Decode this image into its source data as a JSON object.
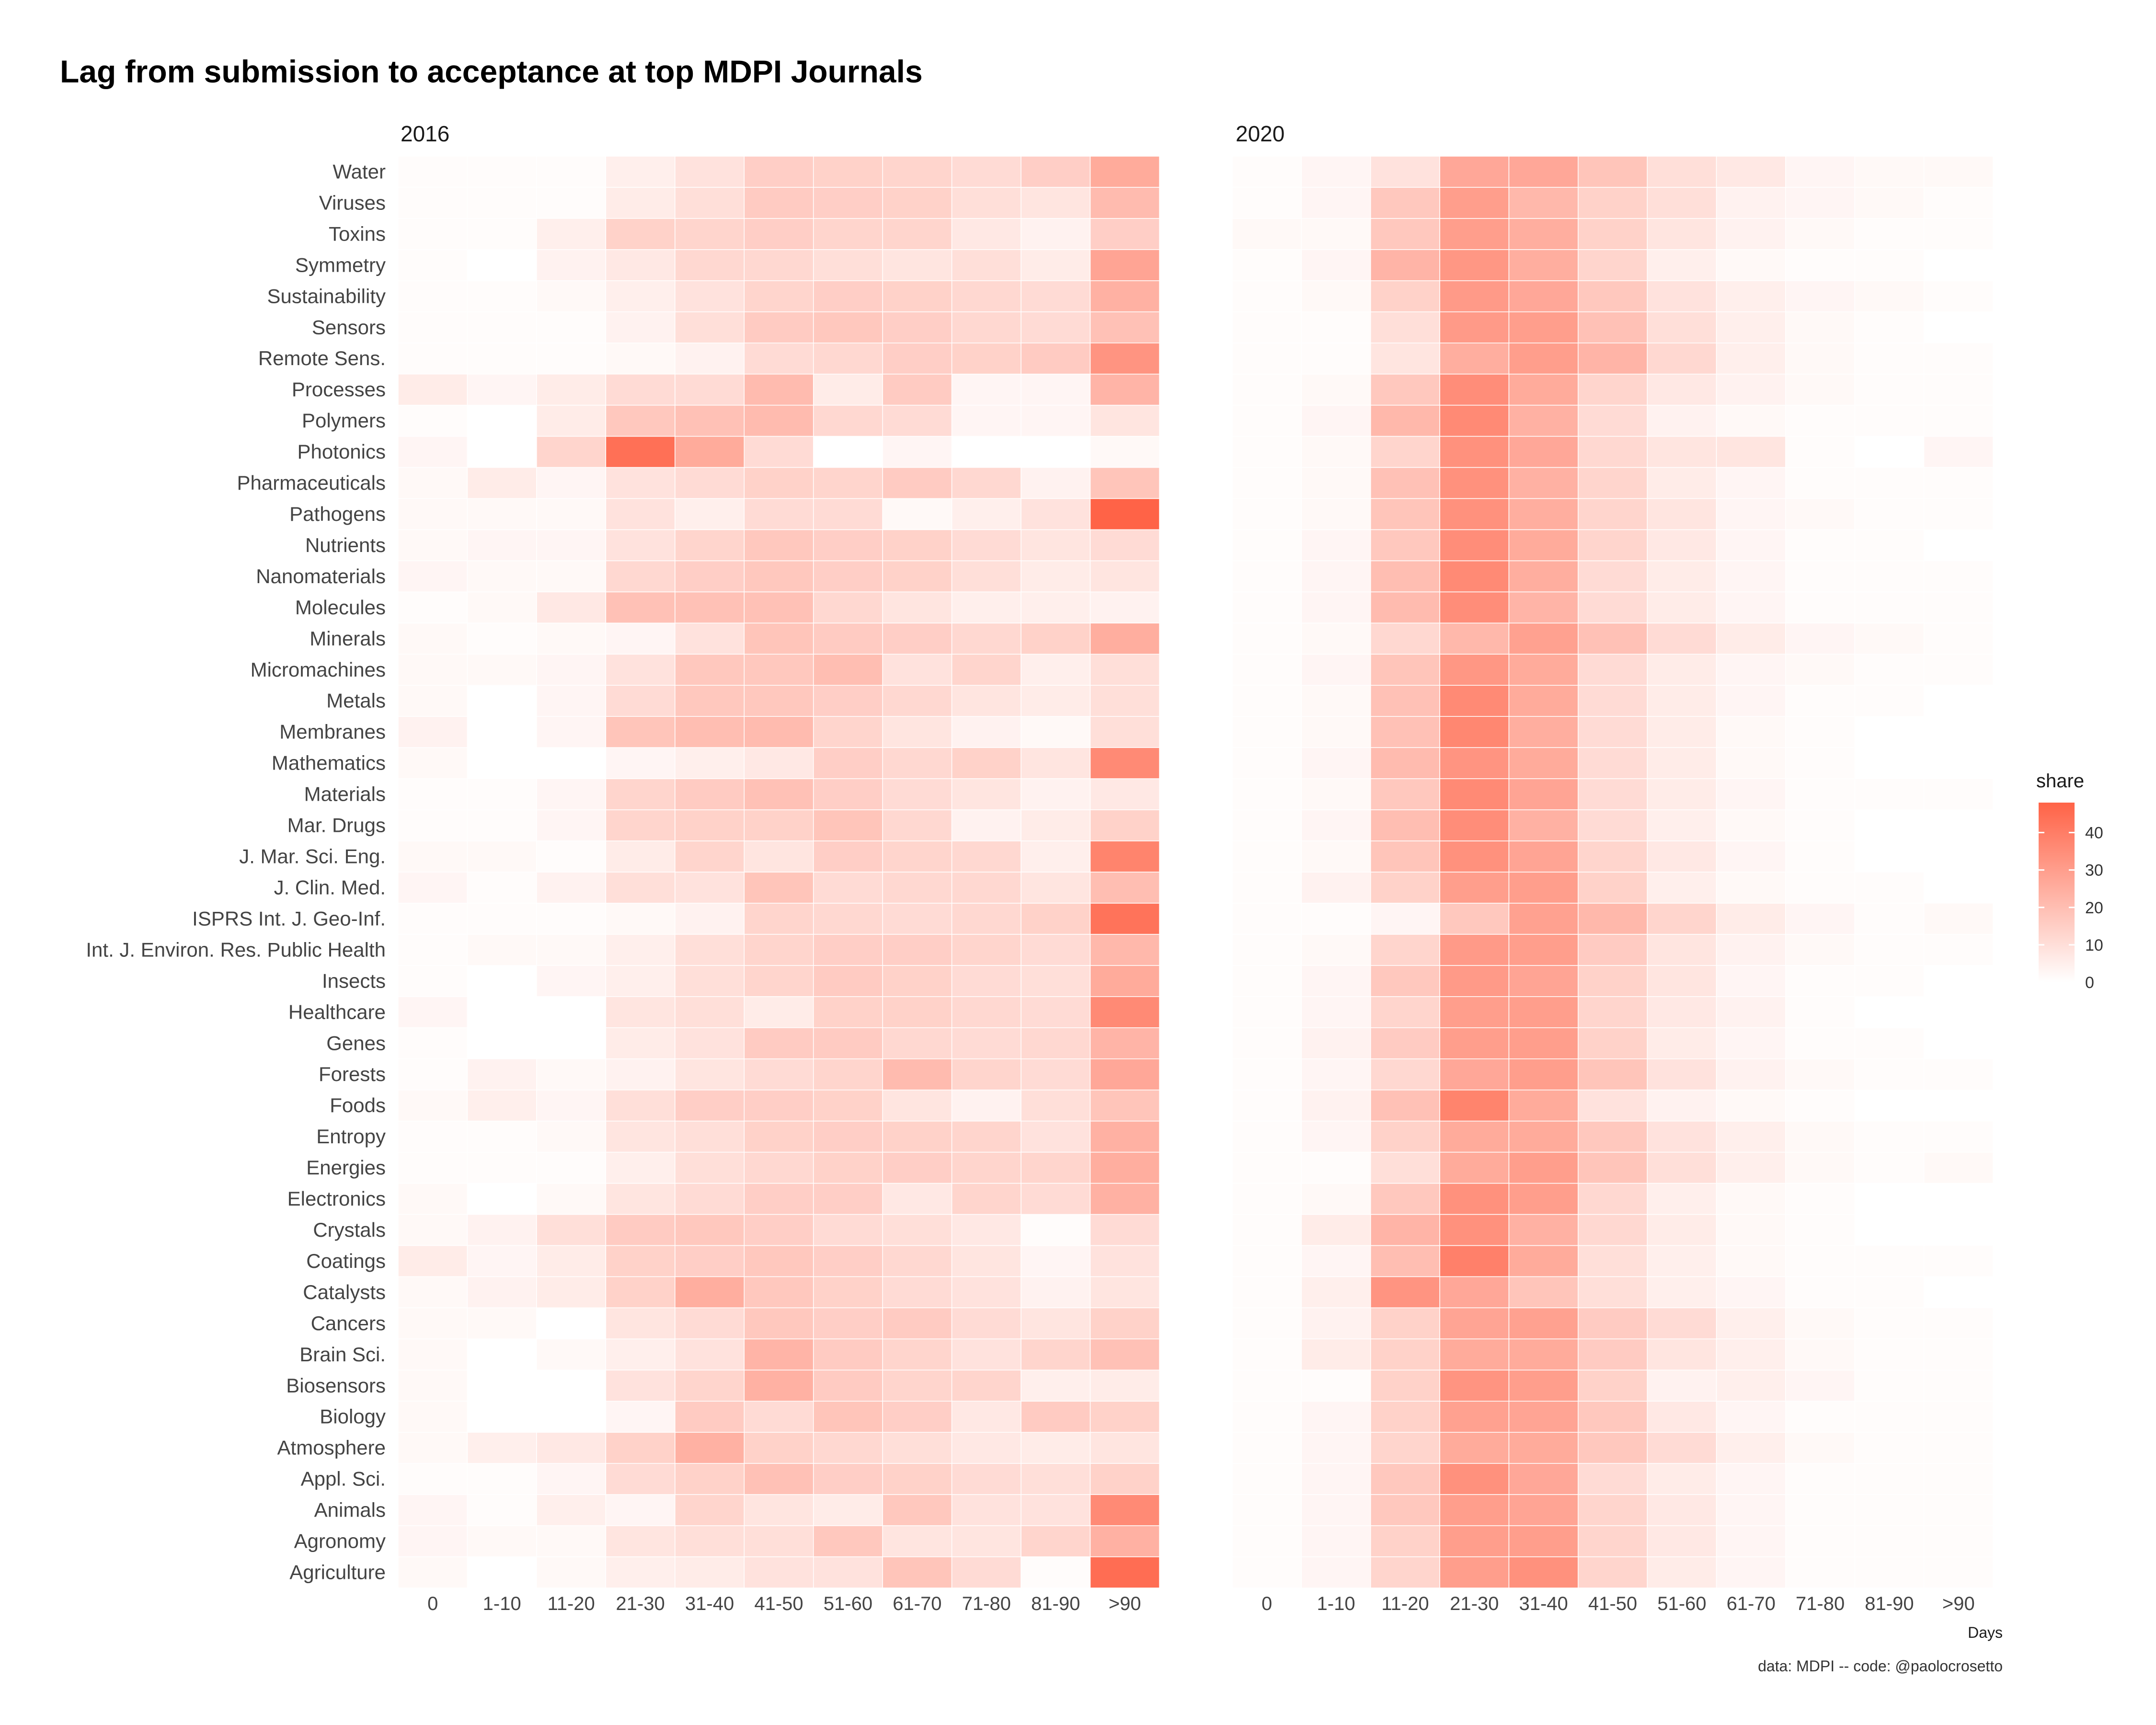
{
  "chart_data": {
    "type": "heatmap",
    "title": "Lag from submission to acceptance at top MDPI Journals",
    "panels": [
      "2016",
      "2020"
    ],
    "x_categories": [
      "0",
      "1-10",
      "11-20",
      "21-30",
      "31-40",
      "41-50",
      "51-60",
      "61-70",
      "71-80",
      "81-90",
      ">90"
    ],
    "xlabel": "Days",
    "ylabel": "",
    "journals": [
      "Water",
      "Viruses",
      "Toxins",
      "Symmetry",
      "Sustainability",
      "Sensors",
      "Remote Sens.",
      "Processes",
      "Polymers",
      "Photonics",
      "Pharmaceuticals",
      "Pathogens",
      "Nutrients",
      "Nanomaterials",
      "Molecules",
      "Minerals",
      "Micromachines",
      "Metals",
      "Membranes",
      "Mathematics",
      "Materials",
      "Mar. Drugs",
      "J. Mar. Sci. Eng.",
      "J. Clin. Med.",
      "ISPRS Int. J. Geo-Inf.",
      "Int. J. Environ. Res. Public Health",
      "Insects",
      "Healthcare",
      "Genes",
      "Forests",
      "Foods",
      "Entropy",
      "Energies",
      "Electronics",
      "Crystals",
      "Coatings",
      "Catalysts",
      "Cancers",
      "Brain Sci.",
      "Biosensors",
      "Biology",
      "Atmosphere",
      "Appl. Sci.",
      "Animals",
      "Agronomy",
      "Agriculture"
    ],
    "values_2016": [
      [
        1,
        1,
        1,
        5,
        9,
        15,
        14,
        13,
        11,
        15,
        26
      ],
      [
        1,
        1,
        1,
        6,
        10,
        16,
        15,
        14,
        10,
        8,
        21
      ],
      [
        1,
        1,
        5,
        14,
        13,
        15,
        13,
        13,
        7,
        4,
        15
      ],
      [
        1,
        0,
        4,
        7,
        12,
        12,
        10,
        8,
        10,
        6,
        28
      ],
      [
        1,
        1,
        2,
        5,
        9,
        13,
        15,
        14,
        12,
        11,
        24
      ],
      [
        1,
        1,
        1,
        4,
        10,
        16,
        17,
        15,
        12,
        11,
        19
      ],
      [
        1,
        1,
        1,
        2,
        4,
        11,
        12,
        15,
        14,
        16,
        33
      ],
      [
        6,
        3,
        6,
        11,
        11,
        21,
        6,
        16,
        3,
        3,
        23
      ],
      [
        1,
        0,
        6,
        17,
        19,
        21,
        12,
        11,
        3,
        3,
        8
      ],
      [
        3,
        0,
        13,
        44,
        26,
        11,
        0,
        3,
        0,
        0,
        2
      ],
      [
        2,
        6,
        3,
        9,
        11,
        14,
        13,
        16,
        12,
        4,
        18
      ],
      [
        2,
        2,
        2,
        9,
        5,
        11,
        11,
        2,
        5,
        9,
        48
      ],
      [
        2,
        3,
        3,
        9,
        13,
        17,
        15,
        14,
        11,
        8,
        11
      ],
      [
        3,
        2,
        2,
        12,
        15,
        17,
        15,
        14,
        10,
        6,
        8
      ],
      [
        1,
        2,
        7,
        19,
        19,
        19,
        12,
        8,
        5,
        5,
        4
      ],
      [
        2,
        1,
        2,
        3,
        9,
        18,
        16,
        15,
        12,
        14,
        25
      ],
      [
        2,
        2,
        3,
        9,
        17,
        17,
        20,
        9,
        13,
        5,
        10
      ],
      [
        2,
        0,
        3,
        11,
        17,
        17,
        15,
        12,
        8,
        6,
        10
      ],
      [
        4,
        0,
        3,
        18,
        20,
        21,
        13,
        8,
        4,
        2,
        10
      ],
      [
        2,
        0,
        0,
        3,
        5,
        7,
        15,
        12,
        14,
        8,
        36
      ],
      [
        1,
        1,
        3,
        13,
        16,
        19,
        15,
        11,
        8,
        4,
        7
      ],
      [
        1,
        1,
        3,
        13,
        14,
        14,
        18,
        12,
        4,
        6,
        14
      ],
      [
        2,
        2,
        1,
        6,
        13,
        8,
        15,
        13,
        12,
        5,
        38
      ],
      [
        3,
        1,
        4,
        10,
        9,
        18,
        11,
        12,
        12,
        8,
        20
      ],
      [
        1,
        1,
        1,
        2,
        4,
        13,
        12,
        11,
        12,
        14,
        43
      ],
      [
        1,
        2,
        2,
        5,
        10,
        13,
        15,
        15,
        13,
        11,
        22
      ],
      [
        1,
        0,
        3,
        5,
        10,
        13,
        16,
        14,
        11,
        10,
        26
      ],
      [
        3,
        0,
        0,
        8,
        10,
        6,
        14,
        14,
        12,
        11,
        36
      ],
      [
        1,
        0,
        0,
        6,
        9,
        16,
        16,
        12,
        11,
        12,
        23
      ],
      [
        1,
        4,
        2,
        4,
        8,
        11,
        13,
        21,
        13,
        11,
        27
      ],
      [
        2,
        5,
        3,
        10,
        15,
        15,
        14,
        8,
        4,
        10,
        18
      ],
      [
        1,
        1,
        2,
        8,
        10,
        14,
        15,
        14,
        13,
        9,
        24
      ],
      [
        1,
        1,
        1,
        5,
        10,
        12,
        14,
        15,
        13,
        13,
        25
      ],
      [
        2,
        0,
        2,
        8,
        11,
        15,
        15,
        7,
        13,
        11,
        24
      ],
      [
        2,
        4,
        10,
        16,
        17,
        15,
        11,
        10,
        7,
        1,
        11
      ],
      [
        6,
        3,
        6,
        14,
        15,
        17,
        15,
        12,
        8,
        3,
        9
      ],
      [
        2,
        4,
        6,
        14,
        25,
        17,
        14,
        11,
        9,
        4,
        8
      ],
      [
        2,
        2,
        0,
        8,
        11,
        17,
        15,
        16,
        11,
        8,
        14
      ],
      [
        2,
        0,
        2,
        5,
        9,
        23,
        16,
        13,
        9,
        13,
        19
      ],
      [
        2,
        0,
        0,
        9,
        13,
        24,
        16,
        13,
        13,
        5,
        6
      ],
      [
        2,
        0,
        0,
        3,
        16,
        11,
        18,
        15,
        7,
        16,
        14
      ],
      [
        2,
        5,
        7,
        14,
        24,
        14,
        12,
        10,
        7,
        6,
        8
      ],
      [
        1,
        1,
        3,
        11,
        14,
        19,
        15,
        14,
        11,
        10,
        14
      ],
      [
        3,
        1,
        5,
        3,
        13,
        8,
        6,
        17,
        9,
        9,
        36
      ],
      [
        3,
        2,
        2,
        8,
        10,
        10,
        17,
        8,
        8,
        13,
        24
      ],
      [
        2,
        0,
        2,
        5,
        6,
        9,
        9,
        18,
        11,
        1,
        45
      ]
    ],
    "values_2020": [
      [
        1,
        3,
        9,
        27,
        27,
        18,
        10,
        7,
        3,
        2,
        2
      ],
      [
        1,
        3,
        17,
        30,
        22,
        14,
        10,
        4,
        3,
        2,
        1
      ],
      [
        2,
        2,
        17,
        30,
        25,
        14,
        8,
        4,
        2,
        1,
        1
      ],
      [
        1,
        3,
        23,
        32,
        25,
        13,
        5,
        2,
        1,
        1,
        0
      ],
      [
        1,
        2,
        14,
        31,
        27,
        17,
        9,
        5,
        3,
        2,
        1
      ],
      [
        1,
        1,
        10,
        31,
        30,
        19,
        10,
        5,
        2,
        1,
        0
      ],
      [
        1,
        1,
        8,
        25,
        30,
        23,
        12,
        5,
        2,
        1,
        1
      ],
      [
        1,
        2,
        17,
        35,
        26,
        13,
        7,
        4,
        2,
        1,
        1
      ],
      [
        1,
        3,
        22,
        36,
        24,
        11,
        4,
        2,
        1,
        1,
        1
      ],
      [
        1,
        2,
        13,
        34,
        27,
        12,
        8,
        8,
        1,
        0,
        3
      ],
      [
        1,
        2,
        19,
        34,
        24,
        13,
        6,
        3,
        1,
        1,
        1
      ],
      [
        1,
        2,
        18,
        34,
        25,
        13,
        8,
        3,
        2,
        1,
        1
      ],
      [
        1,
        3,
        17,
        35,
        26,
        13,
        7,
        3,
        1,
        1,
        0
      ],
      [
        1,
        3,
        20,
        36,
        25,
        11,
        6,
        3,
        1,
        1,
        1
      ],
      [
        1,
        3,
        21,
        35,
        23,
        11,
        6,
        3,
        1,
        1,
        1
      ],
      [
        1,
        2,
        12,
        22,
        29,
        19,
        11,
        6,
        3,
        2,
        1
      ],
      [
        1,
        3,
        18,
        32,
        26,
        11,
        6,
        3,
        2,
        1,
        1
      ],
      [
        1,
        2,
        19,
        36,
        26,
        11,
        6,
        3,
        1,
        1,
        0
      ],
      [
        1,
        2,
        19,
        37,
        25,
        11,
        6,
        2,
        1,
        0,
        0
      ],
      [
        1,
        3,
        21,
        33,
        26,
        11,
        6,
        2,
        1,
        0,
        0
      ],
      [
        1,
        2,
        17,
        36,
        28,
        11,
        6,
        3,
        1,
        1,
        1
      ],
      [
        1,
        3,
        20,
        35,
        24,
        11,
        5,
        2,
        1,
        0,
        0
      ],
      [
        1,
        2,
        18,
        34,
        28,
        13,
        7,
        3,
        1,
        0,
        0
      ],
      [
        1,
        4,
        14,
        30,
        30,
        14,
        5,
        2,
        1,
        1,
        0
      ],
      [
        1,
        1,
        3,
        17,
        29,
        22,
        13,
        6,
        3,
        1,
        2
      ],
      [
        1,
        2,
        13,
        31,
        30,
        16,
        8,
        4,
        2,
        1,
        1
      ],
      [
        1,
        3,
        17,
        31,
        28,
        14,
        8,
        3,
        1,
        1,
        0
      ],
      [
        1,
        3,
        13,
        30,
        30,
        13,
        7,
        4,
        1,
        0,
        0
      ],
      [
        1,
        4,
        16,
        30,
        30,
        14,
        6,
        3,
        1,
        1,
        0
      ],
      [
        1,
        3,
        12,
        27,
        30,
        18,
        9,
        4,
        2,
        1,
        1
      ],
      [
        1,
        4,
        19,
        38,
        26,
        9,
        4,
        2,
        1,
        0,
        0
      ],
      [
        1,
        3,
        14,
        26,
        26,
        17,
        9,
        5,
        2,
        1,
        1
      ],
      [
        1,
        1,
        10,
        26,
        30,
        18,
        10,
        5,
        2,
        1,
        2
      ],
      [
        1,
        2,
        17,
        34,
        30,
        12,
        5,
        2,
        1,
        0,
        0
      ],
      [
        1,
        6,
        23,
        34,
        24,
        12,
        6,
        2,
        1,
        0,
        0
      ],
      [
        1,
        3,
        20,
        39,
        26,
        10,
        5,
        2,
        1,
        1,
        1
      ],
      [
        1,
        5,
        33,
        27,
        18,
        10,
        5,
        3,
        1,
        1,
        0
      ],
      [
        1,
        4,
        14,
        28,
        29,
        16,
        11,
        5,
        2,
        1,
        1
      ],
      [
        1,
        6,
        14,
        26,
        26,
        16,
        8,
        5,
        2,
        1,
        1
      ],
      [
        1,
        1,
        14,
        33,
        30,
        14,
        4,
        5,
        3,
        1,
        1
      ],
      [
        1,
        3,
        14,
        29,
        28,
        17,
        7,
        3,
        1,
        1,
        1
      ],
      [
        1,
        3,
        13,
        26,
        26,
        17,
        11,
        5,
        2,
        1,
        1
      ],
      [
        1,
        3,
        17,
        34,
        27,
        11,
        6,
        3,
        1,
        1,
        1
      ],
      [
        1,
        3,
        17,
        30,
        28,
        13,
        7,
        3,
        1,
        1,
        1
      ],
      [
        1,
        3,
        14,
        30,
        30,
        13,
        7,
        3,
        1,
        1,
        1
      ],
      [
        1,
        3,
        13,
        30,
        34,
        13,
        6,
        3,
        1,
        1,
        1
      ]
    ],
    "legend": {
      "title": "share",
      "ticks": [
        0,
        10,
        20,
        30,
        40
      ],
      "range": [
        0,
        48
      ],
      "low_color": "#ffffff",
      "high_color": "#ff6347",
      "position": "right"
    },
    "grid": false,
    "caption": "data: MDPI -- code: @paolocrosetto"
  }
}
